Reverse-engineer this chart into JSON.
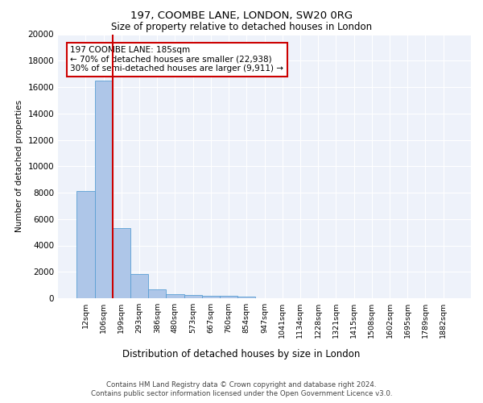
{
  "title1": "197, COOMBE LANE, LONDON, SW20 0RG",
  "title2": "Size of property relative to detached houses in London",
  "xlabel": "Distribution of detached houses by size in London",
  "ylabel": "Number of detached properties",
  "categories": [
    "12sqm",
    "106sqm",
    "199sqm",
    "293sqm",
    "386sqm",
    "480sqm",
    "573sqm",
    "667sqm",
    "760sqm",
    "854sqm",
    "947sqm",
    "1041sqm",
    "1134sqm",
    "1228sqm",
    "1321sqm",
    "1415sqm",
    "1508sqm",
    "1602sqm",
    "1695sqm",
    "1789sqm",
    "1882sqm"
  ],
  "values": [
    8100,
    16500,
    5300,
    1850,
    700,
    300,
    220,
    180,
    180,
    150,
    0,
    0,
    0,
    0,
    0,
    0,
    0,
    0,
    0,
    0,
    0
  ],
  "bar_color": "#aec6e8",
  "bar_edge_color": "#5a9fd4",
  "property_line_x": 2,
  "property_line_color": "#cc0000",
  "annotation_text": "197 COOMBE LANE: 185sqm\n← 70% of detached houses are smaller (22,938)\n30% of semi-detached houses are larger (9,911) →",
  "annotation_box_color": "#ffffff",
  "annotation_box_edge": "#cc0000",
  "background_color": "#eef2fa",
  "grid_color": "#ffffff",
  "footer1": "Contains HM Land Registry data © Crown copyright and database right 2024.",
  "footer2": "Contains public sector information licensed under the Open Government Licence v3.0.",
  "ylim": [
    0,
    20000
  ],
  "yticks": [
    0,
    2000,
    4000,
    6000,
    8000,
    10000,
    12000,
    14000,
    16000,
    18000,
    20000
  ]
}
